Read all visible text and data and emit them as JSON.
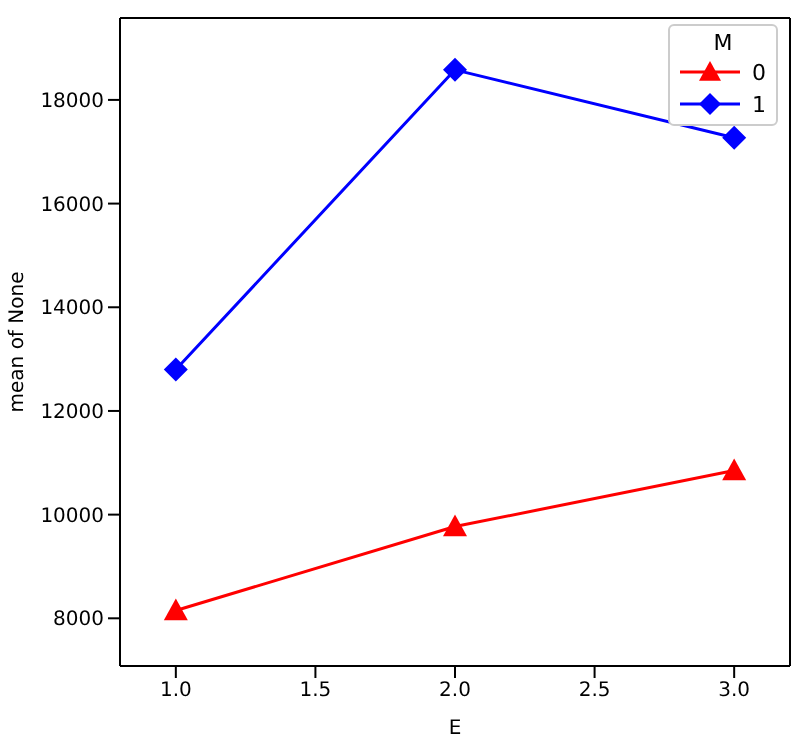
{
  "chart_data": {
    "type": "line",
    "xlabel": "E",
    "ylabel": "mean of None",
    "legend_title": "M",
    "x": [
      1,
      2,
      3
    ],
    "series": [
      {
        "name": "0",
        "color": "#ff0000",
        "marker": "triangle",
        "values": [
          8150,
          9770,
          10850
        ]
      },
      {
        "name": "1",
        "color": "#0000ff",
        "marker": "diamond",
        "values": [
          12800,
          18580,
          17270
        ]
      }
    ],
    "xlim": [
      0.8,
      3.2
    ],
    "xticks": [
      {
        "value": 1,
        "label": "1.0"
      },
      {
        "value": 1.5,
        "label": "1.5"
      },
      {
        "value": 2,
        "label": "2.0"
      },
      {
        "value": 2.5,
        "label": "2.5"
      },
      {
        "value": 3,
        "label": "3.0"
      }
    ],
    "ylim": [
      7080,
      19580
    ],
    "yticks": [
      8000,
      10000,
      12000,
      14000,
      16000,
      18000
    ],
    "grid": false,
    "legend": "top right"
  }
}
